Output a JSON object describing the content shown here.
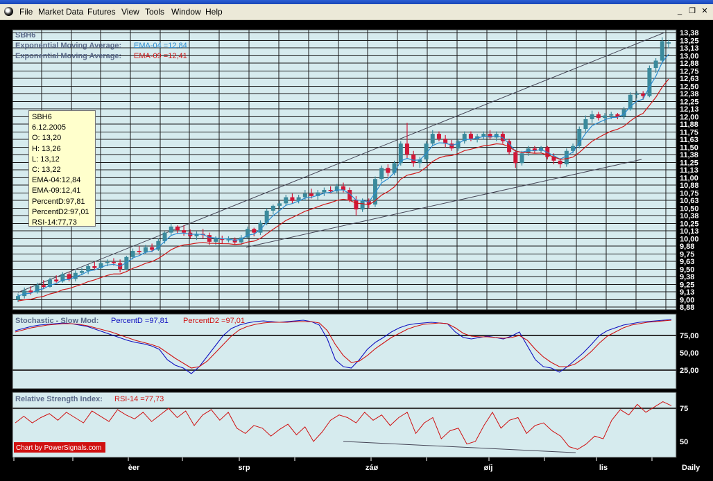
{
  "menu": {
    "items": [
      "File",
      "Market Data",
      "Futures",
      "View",
      "Tools",
      "Window",
      "Help"
    ]
  },
  "window_buttons": {
    "minimize": "_",
    "restore": "❐",
    "close": "✕"
  },
  "colors": {
    "panel_bg": "#d6ebee",
    "grid": "#1a1a1a",
    "candle_up": "#3b8a9c",
    "candle_down": "#d01838",
    "ema4": "#2a8bd0",
    "ema9": "#d01818",
    "stoch_d": "#1010c0",
    "stoch_d2": "#d01010"
  },
  "price_panel": {
    "symbol": "SBH6",
    "ema4_label": "Exponential Moving Average:",
    "ema4_value": "EMA-04 =12,84",
    "ema9_label": "Exponential Moving Average:",
    "ema9_value": "EMA-09 =12,41",
    "y_ticks": [
      "13,38",
      "13,25",
      "13,13",
      "13,00",
      "12,88",
      "12,75",
      "12,63",
      "12,50",
      "12,38",
      "12,25",
      "12,13",
      "12,00",
      "11,88",
      "11,75",
      "11,63",
      "11,50",
      "11,38",
      "11,25",
      "11,13",
      "11,00",
      "10,88",
      "10,75",
      "10,63",
      "10,50",
      "10,38",
      "10,25",
      "10,13",
      "10,00",
      "9,88",
      "9,75",
      "9,63",
      "9,50",
      "9,38",
      "9,25",
      "9,13",
      "9,00",
      "8,88"
    ]
  },
  "info_box": {
    "lines": [
      "SBH6",
      "6.12.2005",
      "O: 13,20",
      "H: 13,26",
      "L: 13,12",
      "C: 13,22",
      "EMA-04:12,84",
      "EMA-09:12,41",
      "PercentD:97,81",
      "PercentD2:97,01",
      "RSI-14:77,73"
    ]
  },
  "stochastic_panel": {
    "label": "Stochastic - Slow Mod:",
    "d_value": "PercentD =97,81",
    "d2_value": "PercentD2 =97,01",
    "y_ticks": [
      "75,00",
      "50,00",
      "25,00"
    ]
  },
  "rsi_panel": {
    "label": "Relative Strength Index:",
    "rsi_value": "RSI-14 =77,73",
    "y_ticks": [
      "75",
      "50"
    ],
    "credit": "Chart by PowerSignals.com"
  },
  "x_axis": {
    "labels": [
      "èer",
      "srp",
      "záø",
      "øíj",
      "lis"
    ],
    "period": "Daily"
  },
  "chart_data": [
    {
      "type": "candlestick",
      "title": "SBH6",
      "ylim": [
        8.88,
        13.38
      ],
      "candles": [
        [
          9.0,
          9.1,
          8.96,
          9.06
        ],
        [
          9.06,
          9.2,
          9.02,
          9.15
        ],
        [
          9.15,
          9.22,
          9.08,
          9.12
        ],
        [
          9.12,
          9.28,
          9.1,
          9.24
        ],
        [
          9.24,
          9.32,
          9.18,
          9.21
        ],
        [
          9.21,
          9.36,
          9.2,
          9.33
        ],
        [
          9.33,
          9.4,
          9.28,
          9.3
        ],
        [
          9.3,
          9.45,
          9.28,
          9.42
        ],
        [
          9.42,
          9.46,
          9.3,
          9.34
        ],
        [
          9.34,
          9.48,
          9.3,
          9.44
        ],
        [
          9.44,
          9.52,
          9.4,
          9.47
        ],
        [
          9.47,
          9.58,
          9.42,
          9.55
        ],
        [
          9.55,
          9.62,
          9.48,
          9.52
        ],
        [
          9.52,
          9.64,
          9.5,
          9.6
        ],
        [
          9.6,
          9.66,
          9.55,
          9.62
        ],
        [
          9.62,
          9.68,
          9.56,
          9.6
        ],
        [
          9.6,
          9.66,
          9.45,
          9.5
        ],
        [
          9.5,
          9.72,
          9.48,
          9.7
        ],
        [
          9.7,
          9.84,
          9.66,
          9.8
        ],
        [
          9.8,
          9.88,
          9.74,
          9.78
        ],
        [
          9.78,
          9.9,
          9.75,
          9.86
        ],
        [
          9.86,
          9.92,
          9.78,
          9.82
        ],
        [
          9.82,
          10.0,
          9.8,
          9.96
        ],
        [
          9.96,
          10.12,
          9.92,
          10.1
        ],
        [
          10.1,
          10.25,
          10.06,
          10.2
        ],
        [
          10.2,
          10.22,
          10.08,
          10.14
        ],
        [
          10.14,
          10.22,
          10.05,
          10.1
        ],
        [
          10.1,
          10.15,
          10.0,
          10.04
        ],
        [
          10.04,
          10.12,
          9.98,
          10.08
        ],
        [
          10.08,
          10.16,
          10.0,
          10.06
        ],
        [
          10.06,
          10.1,
          9.9,
          9.95
        ],
        [
          9.95,
          10.04,
          9.9,
          10.0
        ],
        [
          10.0,
          10.05,
          9.92,
          9.98
        ],
        [
          9.98,
          10.04,
          9.94,
          9.99
        ],
        [
          9.99,
          10.02,
          9.9,
          9.94
        ],
        [
          9.94,
          10.06,
          9.9,
          10.02
        ],
        [
          10.02,
          10.2,
          10.0,
          10.16
        ],
        [
          10.16,
          10.18,
          10.04,
          10.1
        ],
        [
          10.1,
          10.3,
          10.06,
          10.26
        ],
        [
          10.26,
          10.5,
          10.22,
          10.46
        ],
        [
          10.46,
          10.56,
          10.4,
          10.54
        ],
        [
          10.54,
          10.62,
          10.48,
          10.58
        ],
        [
          10.58,
          10.72,
          10.54,
          10.68
        ],
        [
          10.68,
          10.74,
          10.58,
          10.62
        ],
        [
          10.62,
          10.72,
          10.58,
          10.68
        ],
        [
          10.68,
          10.8,
          10.62,
          10.74
        ],
        [
          10.74,
          10.82,
          10.66,
          10.7
        ],
        [
          10.7,
          10.8,
          10.64,
          10.76
        ],
        [
          10.76,
          10.84,
          10.7,
          10.8
        ],
        [
          10.8,
          10.86,
          10.74,
          10.78
        ],
        [
          10.78,
          10.9,
          10.74,
          10.86
        ],
        [
          10.86,
          10.92,
          10.76,
          10.8
        ],
        [
          10.8,
          10.84,
          10.6,
          10.64
        ],
        [
          10.64,
          10.7,
          10.38,
          10.48
        ],
        [
          10.48,
          10.66,
          10.44,
          10.62
        ],
        [
          10.62,
          10.66,
          10.5,
          10.56
        ],
        [
          10.56,
          11.02,
          10.52,
          10.98
        ],
        [
          10.98,
          11.2,
          10.94,
          11.16
        ],
        [
          11.16,
          11.22,
          11.02,
          11.08
        ],
        [
          11.08,
          11.28,
          11.04,
          11.24
        ],
        [
          11.24,
          11.6,
          11.2,
          11.56
        ],
        [
          11.56,
          11.9,
          11.32,
          11.38
        ],
        [
          11.38,
          11.44,
          11.18,
          11.24
        ],
        [
          11.24,
          11.34,
          11.16,
          11.3
        ],
        [
          11.3,
          11.6,
          11.26,
          11.56
        ],
        [
          11.56,
          11.78,
          11.52,
          11.72
        ],
        [
          11.72,
          11.76,
          11.6,
          11.64
        ],
        [
          11.64,
          11.7,
          11.5,
          11.56
        ],
        [
          11.56,
          11.62,
          11.44,
          11.48
        ],
        [
          11.48,
          11.64,
          11.44,
          11.6
        ],
        [
          11.6,
          11.76,
          11.56,
          11.72
        ],
        [
          11.72,
          11.76,
          11.6,
          11.64
        ],
        [
          11.64,
          11.72,
          11.58,
          11.68
        ],
        [
          11.68,
          11.76,
          11.62,
          11.72
        ],
        [
          11.72,
          11.78,
          11.62,
          11.66
        ],
        [
          11.66,
          11.76,
          11.6,
          11.72
        ],
        [
          11.72,
          11.76,
          11.56,
          11.6
        ],
        [
          11.6,
          11.64,
          11.38,
          11.42
        ],
        [
          11.42,
          11.46,
          11.16,
          11.24
        ],
        [
          11.24,
          11.44,
          11.2,
          11.4
        ],
        [
          11.4,
          11.52,
          11.36,
          11.48
        ],
        [
          11.48,
          11.52,
          11.4,
          11.44
        ],
        [
          11.44,
          11.52,
          11.4,
          11.5
        ],
        [
          11.5,
          11.52,
          11.3,
          11.34
        ],
        [
          11.34,
          11.4,
          11.22,
          11.28
        ],
        [
          11.28,
          11.32,
          11.16,
          11.22
        ],
        [
          11.22,
          11.48,
          11.18,
          11.44
        ],
        [
          11.44,
          11.56,
          11.4,
          11.52
        ],
        [
          11.52,
          11.84,
          11.48,
          11.8
        ],
        [
          11.8,
          12.02,
          11.76,
          11.96
        ],
        [
          11.96,
          12.1,
          11.9,
          12.04
        ],
        [
          12.04,
          12.08,
          11.94,
          11.98
        ],
        [
          11.98,
          12.06,
          11.9,
          12.02
        ],
        [
          12.02,
          12.08,
          11.96,
          12.04
        ],
        [
          12.04,
          12.06,
          11.96,
          12.0
        ],
        [
          12.0,
          12.16,
          11.96,
          12.12
        ],
        [
          12.12,
          12.4,
          12.1,
          12.36
        ],
        [
          12.36,
          12.42,
          12.3,
          12.38
        ],
        [
          12.38,
          12.42,
          12.28,
          12.34
        ],
        [
          12.34,
          12.84,
          12.32,
          12.8
        ],
        [
          12.8,
          12.96,
          12.72,
          12.92
        ],
        [
          12.92,
          13.3,
          12.88,
          13.24
        ],
        [
          13.2,
          13.26,
          13.12,
          13.22
        ]
      ]
    },
    {
      "type": "line",
      "title": "Stochastic - Slow Mod",
      "ylim": [
        0,
        100
      ],
      "series": [
        {
          "name": "PercentD",
          "values": [
            82,
            85,
            88,
            90,
            91,
            92,
            93,
            92,
            90,
            88,
            84,
            80,
            76,
            72,
            68,
            65,
            63,
            60,
            55,
            40,
            32,
            28,
            20,
            30,
            45,
            60,
            75,
            85,
            90,
            93,
            95,
            96,
            95,
            94,
            95,
            96,
            97,
            95,
            90,
            70,
            40,
            30,
            28,
            40,
            55,
            65,
            72,
            80,
            86,
            90,
            92,
            93,
            94,
            93,
            92,
            80,
            72,
            70,
            72,
            74,
            72,
            70,
            74,
            80,
            60,
            40,
            30,
            28,
            22,
            30,
            40,
            50,
            62,
            75,
            82,
            86,
            90,
            92,
            94,
            95,
            96,
            97,
            98
          ]
        },
        {
          "name": "PercentD2",
          "values": [
            80,
            83,
            86,
            88,
            90,
            91,
            92,
            92,
            91,
            89,
            86,
            83,
            80,
            76,
            72,
            68,
            65,
            62,
            58,
            50,
            42,
            35,
            28,
            30,
            38,
            50,
            62,
            74,
            83,
            88,
            91,
            93,
            94,
            94,
            94,
            95,
            95,
            95,
            93,
            82,
            62,
            46,
            36,
            38,
            46,
            56,
            64,
            72,
            78,
            84,
            88,
            91,
            92,
            93,
            92,
            86,
            78,
            74,
            73,
            73,
            72,
            71,
            72,
            75,
            68,
            55,
            44,
            36,
            30,
            30,
            34,
            42,
            52,
            64,
            74,
            80,
            86,
            90,
            92,
            94,
            95,
            96,
            97
          ]
        }
      ]
    },
    {
      "type": "line",
      "title": "Relative Strength Index",
      "ylim": [
        40,
        85
      ],
      "series": [
        {
          "name": "RSI-14",
          "values": [
            64,
            69,
            64,
            68,
            71,
            66,
            72,
            68,
            64,
            73,
            69,
            65,
            74,
            70,
            67,
            72,
            65,
            70,
            75,
            68,
            73,
            62,
            70,
            74,
            66,
            72,
            60,
            56,
            62,
            60,
            54,
            59,
            63,
            55,
            61,
            50,
            57,
            66,
            70,
            68,
            64,
            72,
            66,
            70,
            62,
            68,
            72,
            56,
            64,
            68,
            52,
            58,
            60,
            48,
            50,
            62,
            72,
            60,
            66,
            68,
            56,
            62,
            64,
            58,
            54,
            46,
            44,
            48,
            54,
            52,
            66,
            74,
            70,
            78,
            72,
            76,
            80,
            77
          ]
        }
      ]
    }
  ]
}
